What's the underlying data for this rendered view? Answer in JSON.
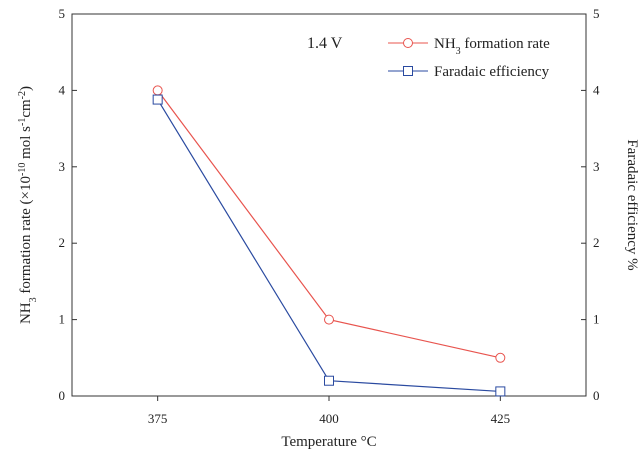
{
  "chart_data": {
    "type": "line",
    "x": [
      375,
      400,
      425
    ],
    "xlim": [
      362.5,
      437.5
    ],
    "ylim": [
      0,
      5
    ],
    "y2lim": [
      0,
      5
    ],
    "x_ticks": [
      "375",
      "400",
      "425"
    ],
    "y_ticks": [
      "0",
      "1",
      "2",
      "3",
      "4",
      "5"
    ],
    "y2_ticks": [
      "0",
      "1",
      "2",
      "3",
      "4",
      "5"
    ],
    "xlabel": "Temperature °C",
    "ylabel_parts": {
      "a": "NH",
      "a_sub": "3",
      "b": " formation rate (×10",
      "b_sup": "-10",
      "c": " mol s",
      "c_sup": "-1",
      "d": "cm",
      "d_sup": "-2",
      "e": ")"
    },
    "y2label": "Faradaic efficiency %",
    "annotation": "1.4 V",
    "legend_position": "top-right",
    "series": [
      {
        "name_parts": {
          "a": "NH",
          "a_sub": "3",
          "b": " formation rate"
        },
        "axis": "left",
        "values": [
          4.0,
          1.0,
          0.5
        ],
        "color": "#e8544e",
        "marker": "circle"
      },
      {
        "name": "Faradaic efficiency",
        "axis": "right",
        "values": [
          3.88,
          0.2,
          0.06
        ],
        "color": "#2a4aa0",
        "marker": "square"
      }
    ]
  }
}
